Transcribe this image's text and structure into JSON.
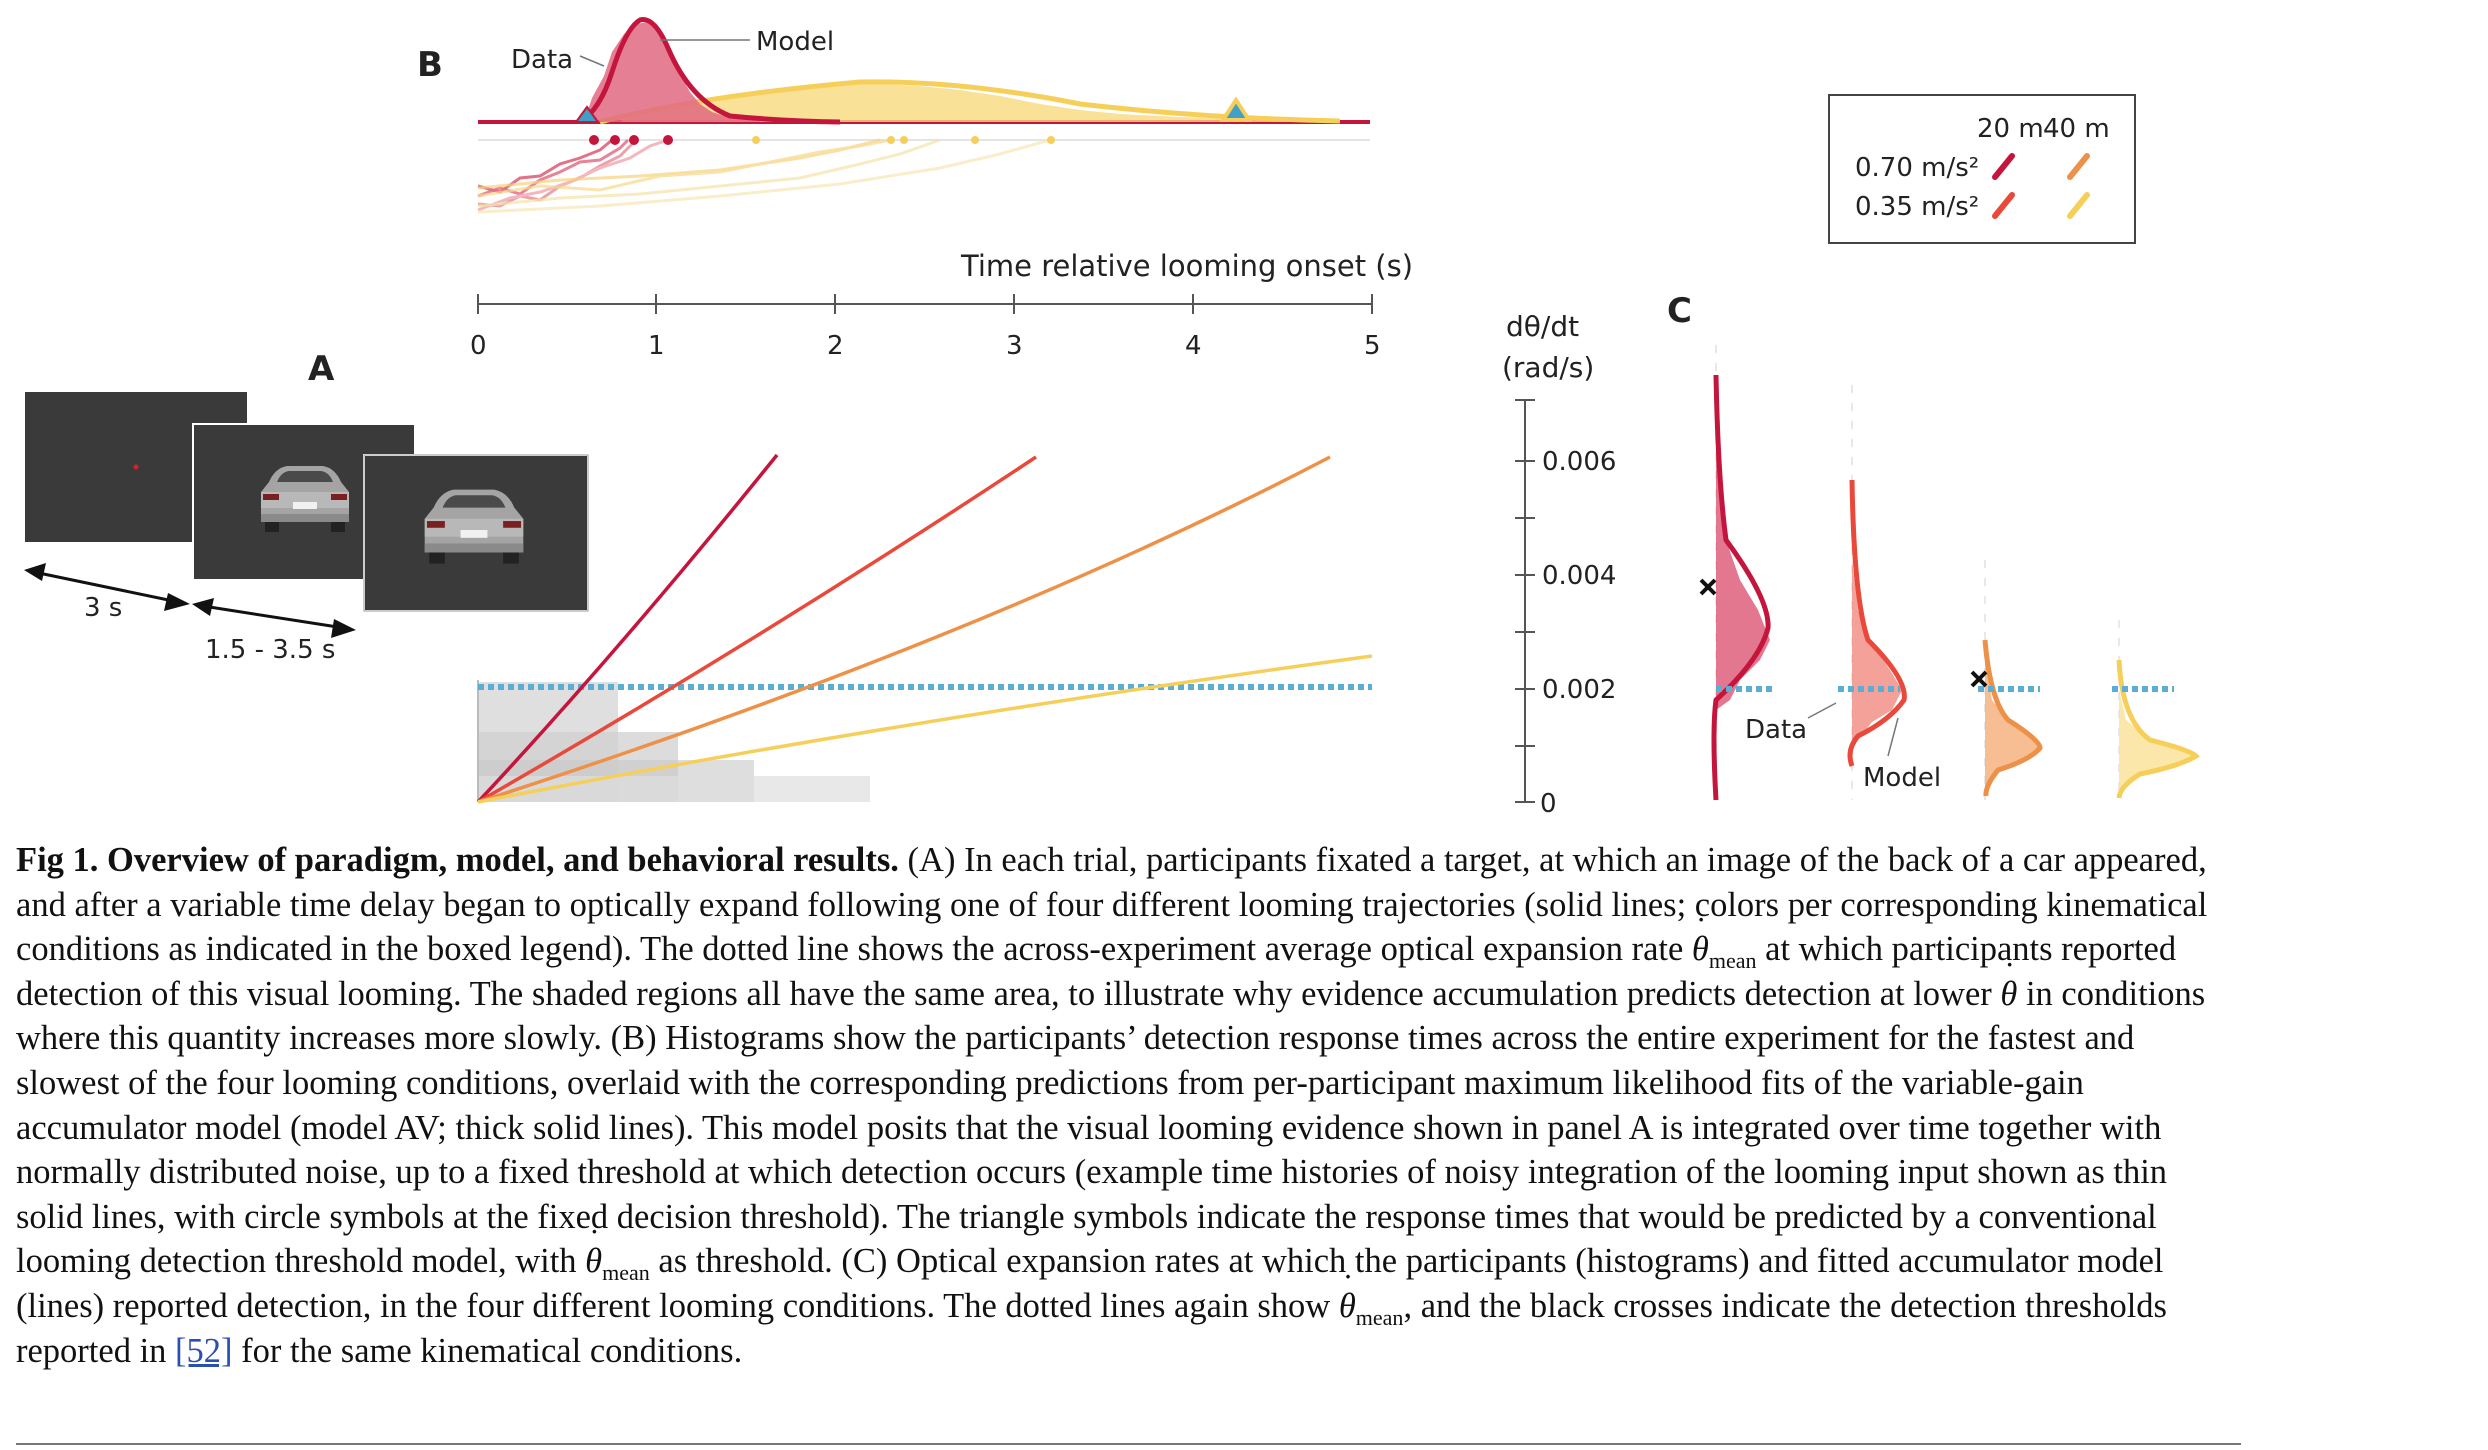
{
  "colors": {
    "c1": "#c4163c",
    "c2": "#e8493a",
    "c3": "#ee9148",
    "c4": "#f6cf5a",
    "dotted": "#5aaed6",
    "triangle_fill": "#3fa0c8",
    "shade": "#dcdcdc",
    "screen": "#3a3a3a"
  },
  "panelA": {
    "label": "A",
    "interval1": "3 s",
    "interval2": "1.5 - 3.5 s"
  },
  "panelB": {
    "label": "B",
    "data_label": "Data",
    "model_label": "Model",
    "axis_label": "Time relative looming onset (s)",
    "ticks": [
      "0",
      "1",
      "2",
      "3",
      "4",
      "5"
    ]
  },
  "legend": {
    "header_20": "20 m",
    "header_40": "40 m",
    "row1": "0.70 m/s²",
    "row2": "0.35 m/s²",
    "icon": "stroke-icon"
  },
  "panelC": {
    "label": "C",
    "ylabel_line1": "dθ/dt",
    "ylabel_line2": "(rad/s)",
    "ticks": [
      "0.006",
      "0.004",
      "0.002",
      "0"
    ],
    "data_label": "Data",
    "model_label": "Model"
  },
  "caption": {
    "title": "Fig 1. Overview of paradigm, model, and behavioral results.",
    "p1": " (A) In each trial, participants fixated a target, at which an image of the back of a car appeared, and after a variable time delay began to optically expand following one of four different looming trajectories (solid lines; colors per corresponding kinematical conditions as indicated in the boxed legend). The dotted line shows the across-experiment average optical expansion rate ",
    "theta": "θ",
    "mean": "mean",
    "p2": " at which participants reported detection of this visual looming. The shaded regions all have the same area, to illustrate why evidence accumulation predicts detection at lower ",
    "p3": " in conditions where this quantity increases more slowly. (B) Histograms show the participants’ detection response times across the entire experiment for the fastest and slowest of the four looming conditions, overlaid with the corresponding predictions from per-participant maximum likelihood fits of the variable-gain accumulator model (model AV; thick solid lines). This model posits that the visual looming evidence shown in panel A is integrated over time together with normally distributed noise, up to a fixed threshold at which detection occurs (example time histories of noisy integration of the looming input shown as thin solid lines, with circle symbols at the fixed decision threshold). The triangle symbols indicate the response times that would be predicted by a conventional looming detection threshold model, with ",
    "p4": " as threshold. (C) Optical expansion rates at which the participants (histograms) and fitted accumulator model (lines) reported detection, in the four different looming conditions. The dotted lines again show ",
    "p5": ", and the black crosses indicate the detection thresholds reported in ",
    "ref": "[52]",
    "p6": " for the same kinematical conditions."
  }
}
